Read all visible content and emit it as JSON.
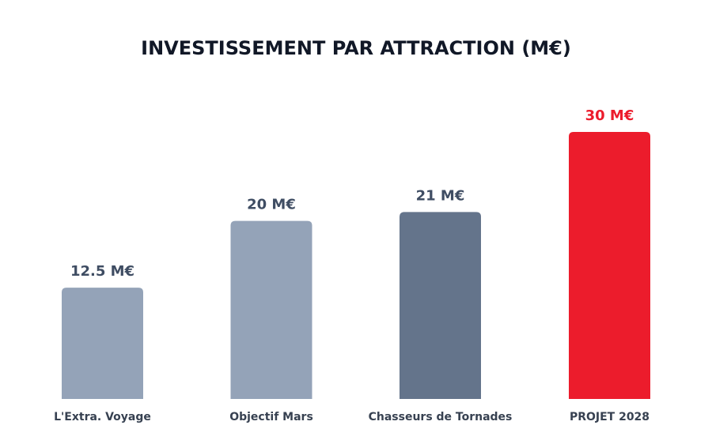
{
  "chart_data": {
    "type": "bar",
    "title": "INVESTISSEMENT PAR ATTRACTION (M€)",
    "categories": [
      "L'Extra. Voyage",
      "Objectif Mars",
      "Chasseurs de Tornades",
      "PROJET 2028"
    ],
    "values": [
      12.5,
      20,
      21,
      30
    ],
    "data_labels": [
      "12.5 M€",
      "20 M€",
      "21 M€",
      "30 M€"
    ],
    "bar_colors": [
      "#94a3b8",
      "#94a3b8",
      "#64748b",
      "#ec1c2c"
    ],
    "data_label_colors": [
      "#3f4d63",
      "#3f4d63",
      "#3f4d63",
      "#ec1c2c"
    ],
    "title_color": "#111827",
    "category_label_color": "#374151",
    "ylim": [
      0,
      30
    ],
    "grid": false,
    "legend": "none"
  }
}
